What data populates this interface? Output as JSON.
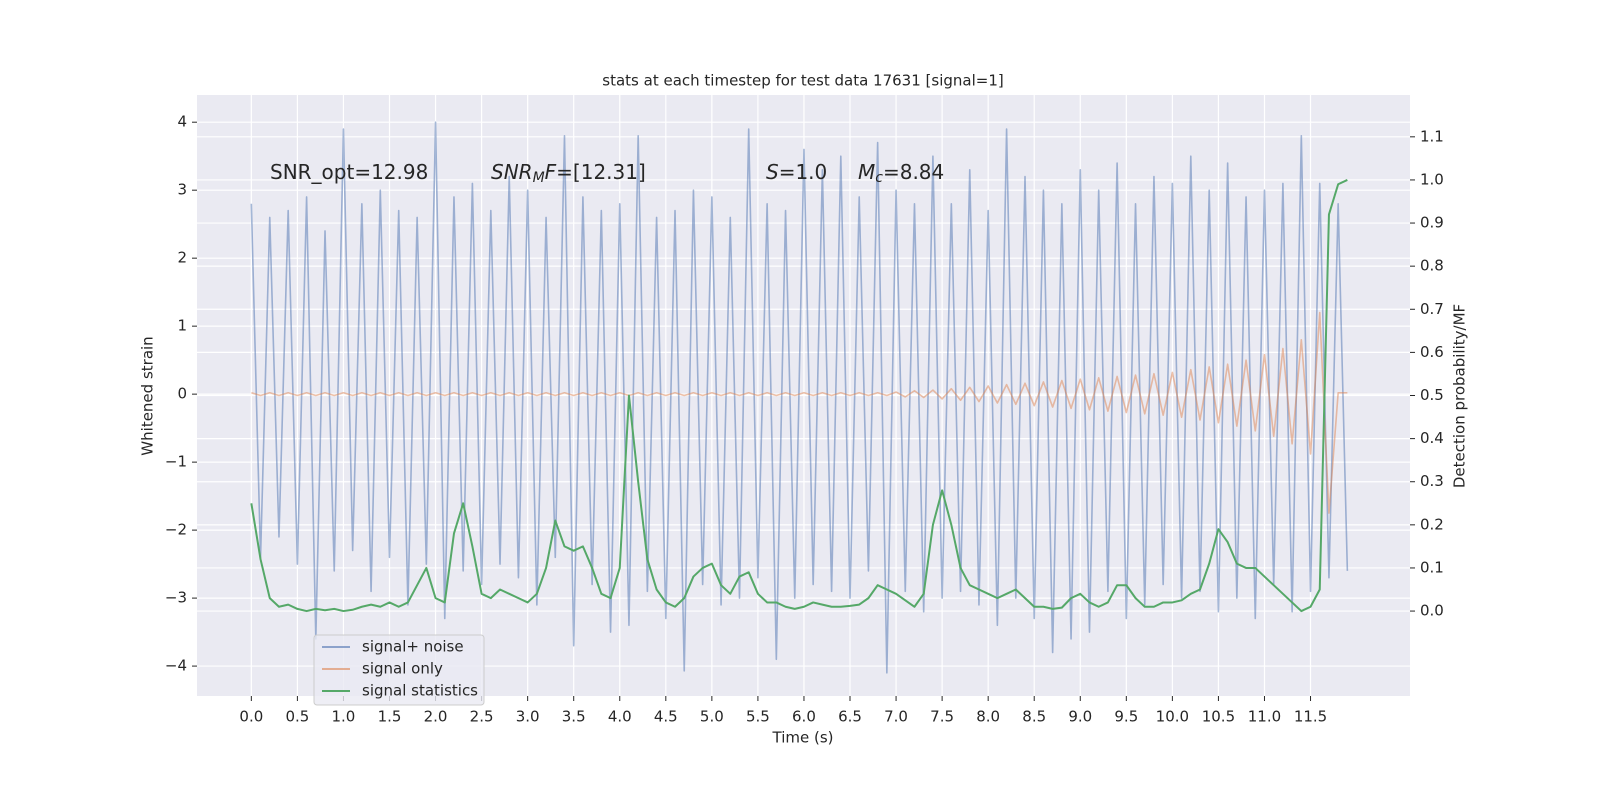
{
  "chart_data": {
    "type": "line",
    "title": "stats at each timestep for test data 17631 [signal=1]",
    "xlabel": "Time (s)",
    "ylabel": "Whitened strain",
    "y2label": "Detection probability/MF",
    "annotations": [
      [
        {
          "text": "SNR_opt=12.98"
        }
      ],
      [
        {
          "text": "SNR",
          "style": "italic"
        },
        {
          "text": "M",
          "style": "sub"
        },
        {
          "text": "F",
          "style": "italic"
        },
        {
          "text": "=[12.31]"
        }
      ],
      [
        {
          "text": "S",
          "style": "italic"
        },
        {
          "text": "=1.0"
        }
      ],
      [
        {
          "text": "M",
          "style": "italic"
        },
        {
          "text": "c",
          "style": "sub"
        },
        {
          "text": "=8.84"
        }
      ]
    ],
    "x": [
      0,
      0.1,
      0.2,
      0.3,
      0.4,
      0.5,
      0.6,
      0.7,
      0.8,
      0.9,
      1,
      1.1,
      1.2,
      1.3,
      1.4,
      1.5,
      1.6,
      1.7,
      1.8,
      1.9,
      2,
      2.1,
      2.2,
      2.3,
      2.4,
      2.5,
      2.6,
      2.7,
      2.8,
      2.9,
      3,
      3.1,
      3.2,
      3.3,
      3.4,
      3.5,
      3.6,
      3.7,
      3.8,
      3.9,
      4,
      4.1,
      4.2,
      4.3,
      4.4,
      4.5,
      4.6,
      4.7,
      4.8,
      4.9,
      5,
      5.1,
      5.2,
      5.3,
      5.4,
      5.5,
      5.6,
      5.7,
      5.8,
      5.9,
      6,
      6.1,
      6.2,
      6.3,
      6.4,
      6.5,
      6.6,
      6.7,
      6.8,
      6.9,
      7,
      7.1,
      7.2,
      7.3,
      7.4,
      7.5,
      7.6,
      7.7,
      7.8,
      7.9,
      8,
      8.1,
      8.2,
      8.3,
      8.4,
      8.5,
      8.6,
      8.7,
      8.8,
      8.9,
      9,
      9.1,
      9.2,
      9.3,
      9.4,
      9.5,
      9.6,
      9.7,
      9.8,
      9.9,
      10,
      10.1,
      10.2,
      10.3,
      10.4,
      10.5,
      10.6,
      10.7,
      10.8,
      10.9,
      11,
      11.1,
      11.2,
      11.3,
      11.4,
      11.5,
      11.6,
      11.7,
      11.8,
      11.9
    ],
    "series": [
      {
        "name": "signal+ noise",
        "color": "#4c72b0",
        "axis": "y",
        "values": [
          2.8,
          -2.4,
          2.6,
          -2.1,
          2.7,
          -2.5,
          2.9,
          -3.6,
          2.4,
          -2.6,
          3.9,
          -2.3,
          2.8,
          -2.9,
          3.0,
          -2.4,
          2.7,
          -3.1,
          2.6,
          -2.5,
          4.0,
          -3.3,
          2.9,
          -2.6,
          3.1,
          -2.8,
          2.7,
          -2.5,
          3.2,
          -2.7,
          3.0,
          -3.1,
          2.6,
          -2.4,
          3.8,
          -3.7,
          2.9,
          -2.8,
          2.7,
          -3.5,
          2.8,
          -3.4,
          3.8,
          -2.9,
          2.6,
          -3.3,
          2.7,
          -4.07,
          3.0,
          -2.8,
          2.9,
          -3.1,
          2.6,
          -3.0,
          3.9,
          -2.7,
          2.8,
          -3.9,
          2.7,
          -3.0,
          3.6,
          -2.8,
          3.3,
          -2.9,
          3.5,
          -3.0,
          2.9,
          -2.6,
          3.7,
          -4.1,
          3.0,
          -2.9,
          2.8,
          -3.2,
          3.5,
          -3.0,
          2.8,
          -2.9,
          3.3,
          -3.1,
          2.7,
          -3.4,
          3.9,
          -3.0,
          3.2,
          -3.3,
          3.0,
          -3.8,
          2.8,
          -3.6,
          3.3,
          -3.5,
          3.0,
          -2.9,
          3.4,
          -3.3,
          2.8,
          -3.1,
          3.2,
          -2.8,
          3.1,
          -3.0,
          3.5,
          -2.9,
          3.0,
          -3.2,
          3.4,
          -3.0,
          2.9,
          -3.3,
          3.0,
          -2.8,
          3.1,
          -3.2,
          3.8,
          -2.9,
          3.1,
          -2.7,
          2.8,
          -2.6
        ]
      },
      {
        "name": "signal only",
        "color": "#dd8452",
        "axis": "y",
        "values": [
          0.02,
          -0.02,
          0.02,
          -0.02,
          0.02,
          -0.02,
          0.02,
          -0.02,
          0.02,
          -0.02,
          0.02,
          -0.02,
          0.02,
          -0.02,
          0.02,
          -0.02,
          0.02,
          -0.02,
          0.02,
          -0.02,
          0.02,
          -0.02,
          0.02,
          -0.02,
          0.02,
          -0.02,
          0.02,
          -0.02,
          0.02,
          -0.02,
          0.02,
          -0.02,
          0.02,
          -0.02,
          0.02,
          -0.02,
          0.02,
          -0.02,
          0.02,
          -0.02,
          0.02,
          -0.02,
          0.02,
          -0.02,
          0.02,
          -0.02,
          0.02,
          -0.02,
          0.02,
          -0.02,
          0.02,
          -0.02,
          0.02,
          -0.02,
          0.02,
          -0.02,
          0.02,
          -0.02,
          0.02,
          -0.02,
          0.02,
          -0.02,
          0.02,
          -0.02,
          0.02,
          -0.02,
          0.02,
          -0.02,
          0.02,
          -0.02,
          0.03,
          -0.04,
          0.05,
          -0.05,
          0.06,
          -0.07,
          0.08,
          -0.09,
          0.1,
          -0.11,
          0.12,
          -0.13,
          0.14,
          -0.15,
          0.16,
          -0.17,
          0.18,
          -0.19,
          0.2,
          -0.21,
          0.22,
          -0.23,
          0.24,
          -0.25,
          0.26,
          -0.27,
          0.28,
          -0.29,
          0.3,
          -0.31,
          0.32,
          -0.34,
          0.36,
          -0.38,
          0.4,
          -0.42,
          0.44,
          -0.47,
          0.5,
          -0.54,
          0.58,
          -0.62,
          0.67,
          -0.73,
          0.8,
          -0.88,
          1.2,
          -1.75,
          0.02,
          0.02
        ]
      },
      {
        "name": "signal statistics",
        "color": "#55a868",
        "axis": "y2",
        "values": [
          0.25,
          0.12,
          0.03,
          0.01,
          0.015,
          0.005,
          0,
          0.005,
          0.002,
          0.005,
          0,
          0.003,
          0.01,
          0.015,
          0.01,
          0.02,
          0.01,
          0.02,
          0.06,
          0.1,
          0.03,
          0.02,
          0.18,
          0.25,
          0.15,
          0.04,
          0.03,
          0.05,
          0.04,
          0.03,
          0.02,
          0.04,
          0.1,
          0.21,
          0.15,
          0.14,
          0.15,
          0.1,
          0.04,
          0.03,
          0.1,
          0.5,
          0.3,
          0.12,
          0.05,
          0.02,
          0.01,
          0.03,
          0.08,
          0.1,
          0.11,
          0.06,
          0.04,
          0.08,
          0.09,
          0.04,
          0.02,
          0.02,
          0.01,
          0.005,
          0.01,
          0.02,
          0.015,
          0.01,
          0.01,
          0.012,
          0.015,
          0.03,
          0.06,
          0.05,
          0.04,
          0.025,
          0.01,
          0.04,
          0.2,
          0.28,
          0.2,
          0.1,
          0.06,
          0.05,
          0.04,
          0.03,
          0.04,
          0.05,
          0.03,
          0.01,
          0.01,
          0.005,
          0.008,
          0.03,
          0.04,
          0.02,
          0.01,
          0.02,
          0.06,
          0.06,
          0.03,
          0.01,
          0.01,
          0.02,
          0.02,
          0.025,
          0.04,
          0.05,
          0.11,
          0.19,
          0.16,
          0.11,
          0.1,
          0.1,
          0.08,
          0.06,
          0.04,
          0.02,
          0,
          0.01,
          0.05,
          0.92,
          0.99,
          1.0
        ]
      }
    ],
    "xlim": [
      -0.59,
      12.58
    ],
    "ylim": [
      -4.44,
      4.4
    ],
    "y2lim": [
      -0.197,
      1.197
    ],
    "xticks": [
      {
        "value": 0,
        "label": "0.0"
      },
      0.5,
      {
        "value": 1,
        "label": "1.0"
      },
      1.5,
      {
        "value": 2,
        "label": "2.0"
      },
      2.5,
      {
        "value": 3,
        "label": "3.0"
      },
      3.5,
      {
        "value": 4,
        "label": "4.0"
      },
      4.5,
      {
        "value": 5,
        "label": "5.0"
      },
      5.5,
      {
        "value": 6,
        "label": "6.0"
      },
      6.5,
      {
        "value": 7,
        "label": "7.0"
      },
      7.5,
      {
        "value": 8,
        "label": "8.0"
      },
      8.5,
      {
        "value": 9,
        "label": "9.0"
      },
      9.5,
      {
        "value": 10,
        "label": "10.0"
      },
      10.5,
      {
        "value": 11,
        "label": "11.0"
      },
      11.5
    ],
    "yticks": [
      {
        "value": -4,
        "label": "−4"
      },
      {
        "value": -3,
        "label": "−3"
      },
      {
        "value": -2,
        "label": "−2"
      },
      {
        "value": -1,
        "label": "−1"
      },
      0,
      1,
      2,
      3,
      4
    ],
    "y2ticks": [
      {
        "value": 0,
        "label": "0.0"
      },
      0.1,
      0.2,
      0.3,
      0.4,
      0.5,
      0.6,
      0.7,
      0.8,
      0.9,
      {
        "value": 1,
        "label": "1.0"
      },
      1.1
    ],
    "grid": true,
    "legend_loc": "lower left",
    "background": "#eaeaf2"
  }
}
